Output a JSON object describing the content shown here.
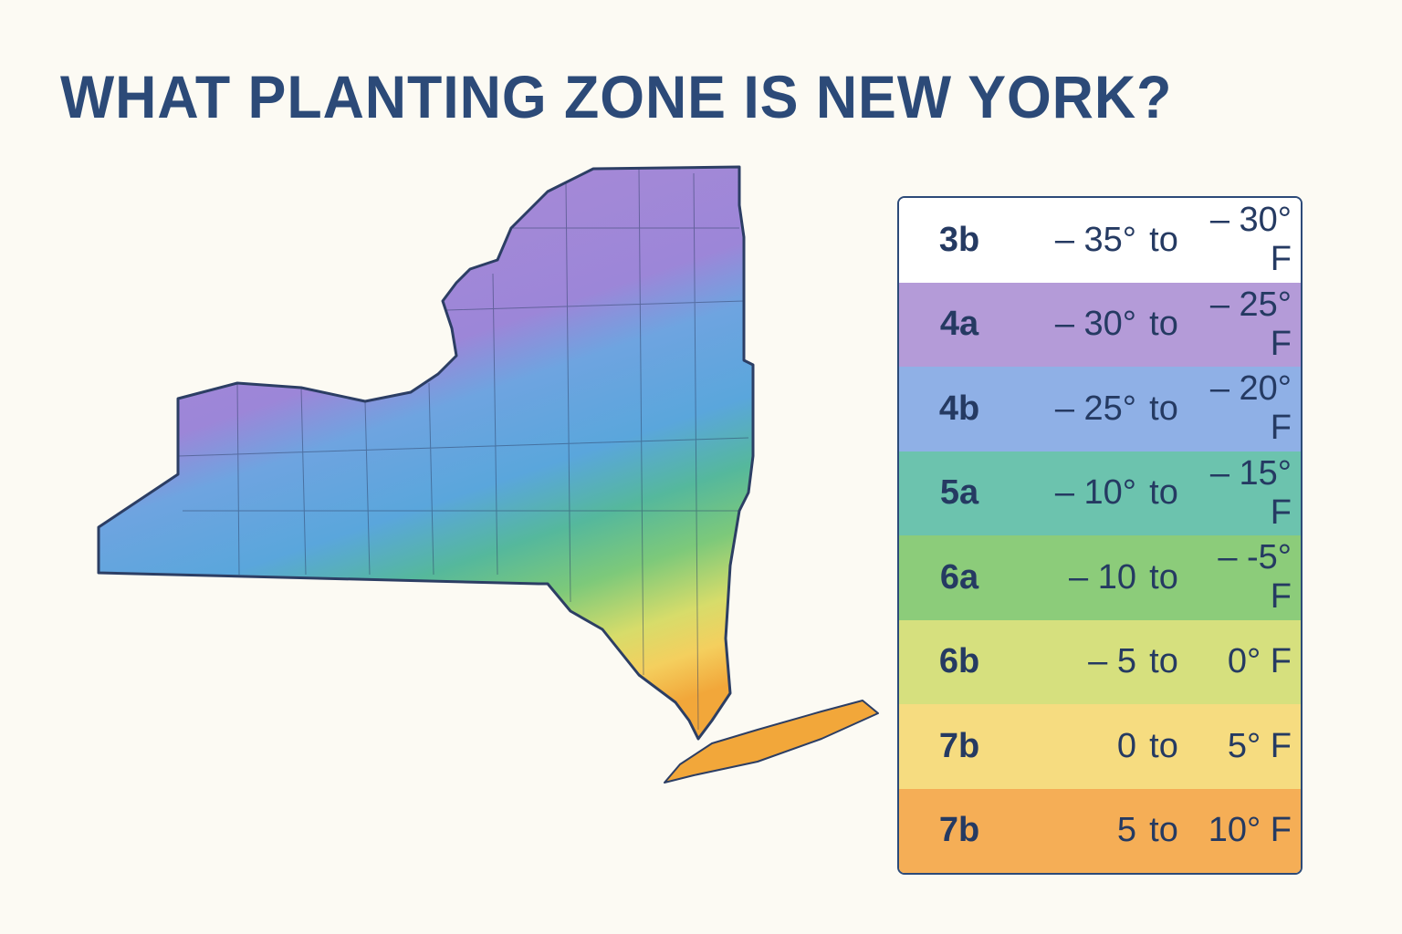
{
  "title": "WHAT PLANTING ZONE IS NEW YORK?",
  "legend": {
    "rows": [
      [
        "3b",
        "– 35°",
        "to",
        "– 30° F"
      ],
      [
        "4a",
        "– 30°",
        "to",
        "– 25° F"
      ],
      [
        "4b",
        "– 25°",
        "to",
        "– 20° F"
      ],
      [
        "5a",
        "– 10°",
        "to",
        "– 15° F"
      ],
      [
        "6a",
        "– 10",
        "to",
        "– -5° F"
      ],
      [
        "6b",
        "– 5",
        "to",
        "0° F"
      ],
      [
        "7b",
        "0",
        "to",
        "5° F"
      ],
      [
        "7b",
        "5",
        "to",
        "10° F"
      ]
    ]
  }
}
